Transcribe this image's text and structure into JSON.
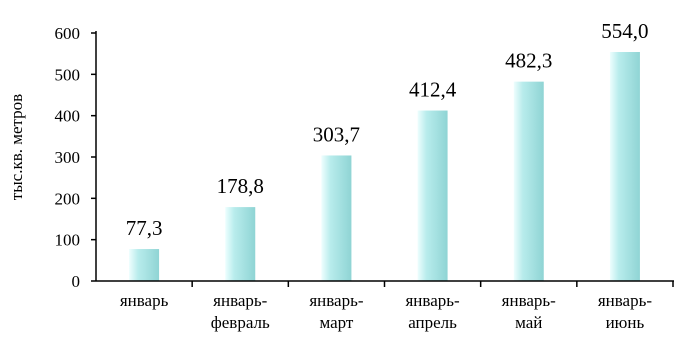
{
  "chart_data": {
    "type": "bar",
    "title": "",
    "xlabel": "",
    "ylabel": "тыс.кв. метров",
    "ylim": [
      0,
      600
    ],
    "yticks": [
      0,
      100,
      200,
      300,
      400,
      500,
      600
    ],
    "grid": false,
    "categories": [
      [
        "январь"
      ],
      [
        "январь-",
        "февраль"
      ],
      [
        "январь-",
        "март"
      ],
      [
        "январь-",
        "апрель"
      ],
      [
        "январь-",
        "май"
      ],
      [
        "январь-",
        "июнь"
      ]
    ],
    "values": [
      77.3,
      178.8,
      303.7,
      412.4,
      482.3,
      554.0
    ],
    "data_labels": [
      "77,3",
      "178,8",
      "303,7",
      "412,4",
      "482,3",
      "554,0"
    ],
    "colors": {
      "bar_light": "#eefefe",
      "bar_mid": "#b8ecec",
      "bar_dark": "#8fd4d4",
      "axis": "#000000"
    }
  }
}
